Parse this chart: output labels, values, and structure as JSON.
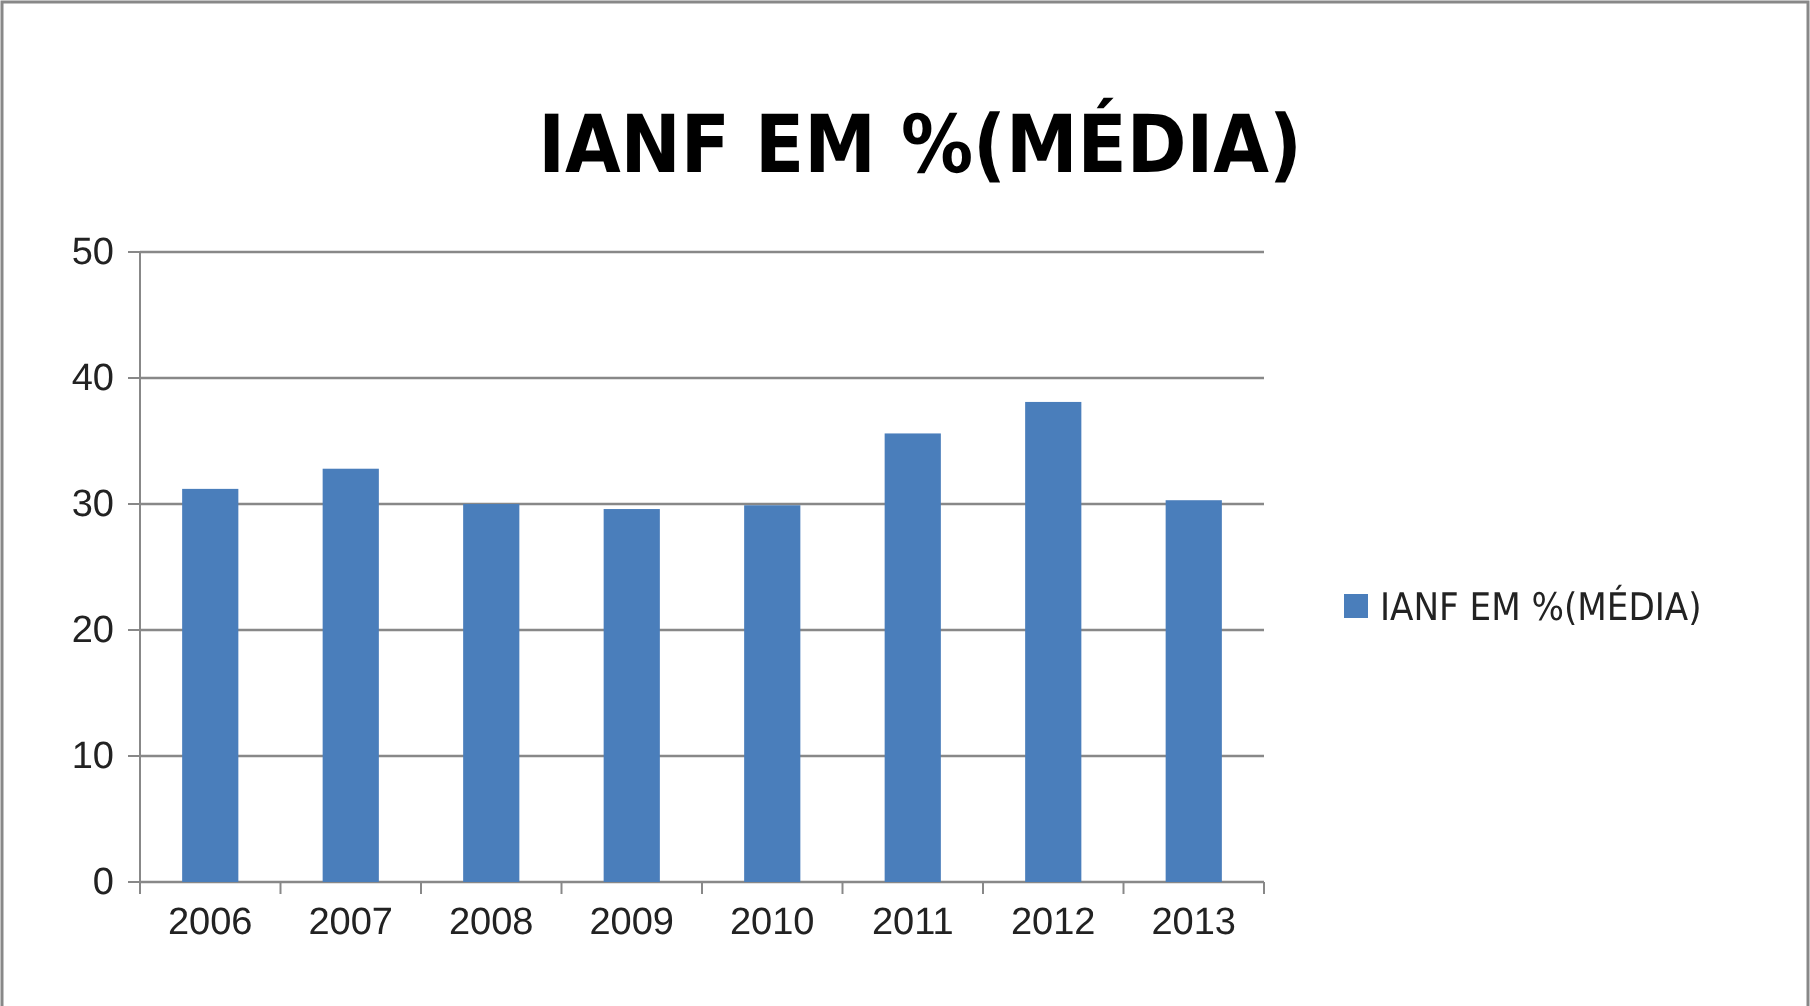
{
  "chart_data": {
    "type": "bar",
    "title": "IANF EM %(MÉDIA)",
    "categories": [
      "2006",
      "2007",
      "2008",
      "2009",
      "2010",
      "2011",
      "2012",
      "2013"
    ],
    "series": [
      {
        "name": "IANF EM %(MÉDIA)",
        "color": "#4a7ebb",
        "values": [
          31.2,
          32.8,
          30.0,
          29.6,
          29.9,
          35.6,
          38.1,
          30.3
        ]
      }
    ],
    "ylim": [
      0,
      50
    ],
    "yticks": [
      0,
      10,
      20,
      30,
      40,
      50
    ],
    "grid": "y",
    "legend": "right"
  }
}
